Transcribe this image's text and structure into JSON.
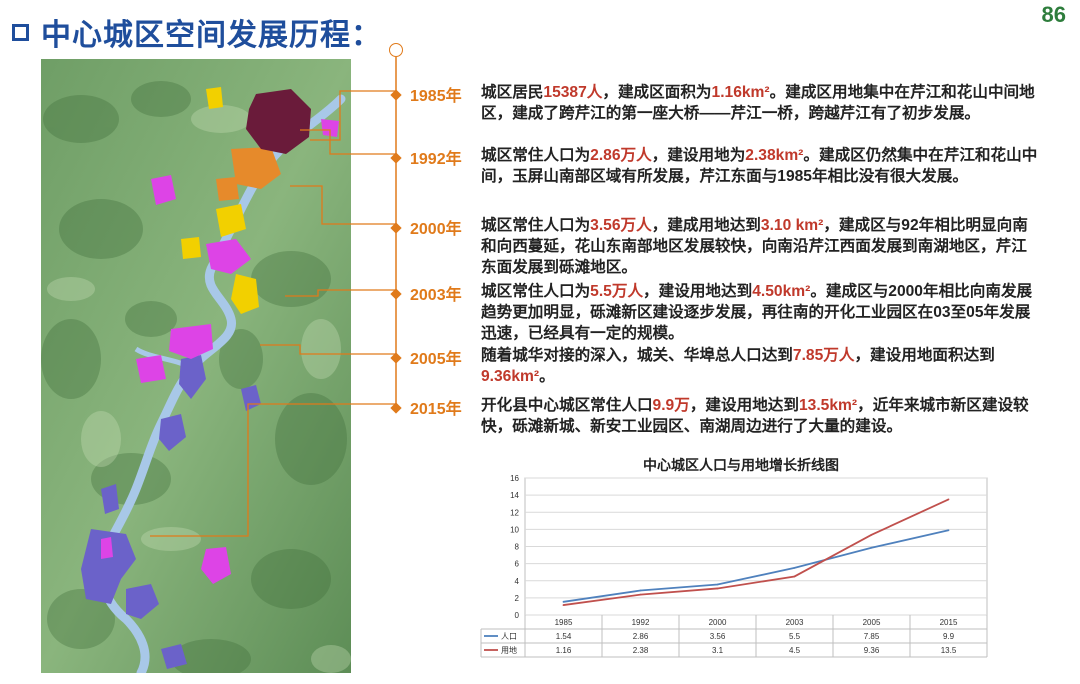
{
  "page": {
    "title": "中心城区空间发展历程：",
    "number": "86"
  },
  "timeline": [
    {
      "year": "1985年",
      "parts": [
        {
          "t": "城区居民"
        },
        {
          "t": "15387人",
          "hl": true
        },
        {
          "t": "，建成区面积为"
        },
        {
          "t": "1.16km²",
          "hl": true
        },
        {
          "t": "。建成区用地集中在芹江和花山中间地区，建成了跨芹江的第一座大桥——芹江一桥，跨越芹江有了初步发展。"
        }
      ]
    },
    {
      "year": "1992年",
      "parts": [
        {
          "t": "城区常住人口为"
        },
        {
          "t": "2.86万人",
          "hl": true
        },
        {
          "t": "，建设用地为"
        },
        {
          "t": "2.38km²",
          "hl": true
        },
        {
          "t": "。建成区仍然集中在芹江和花山中间，玉屏山南部区域有所发展，芹江东面与1985年相比没有很大发展。"
        }
      ]
    },
    {
      "year": "2000年",
      "parts": [
        {
          "t": "城区常住人口为"
        },
        {
          "t": "3.56万人",
          "hl": true
        },
        {
          "t": "，建成用地达到"
        },
        {
          "t": "3.10 km²",
          "hl": true
        },
        {
          "t": "，建成区与92年相比明显向南和向西蔓延，花山东南部地区发展较快，向南沿芹江西面发展到南湖地区，芹江东面发展到砾滩地区。"
        }
      ]
    },
    {
      "year": "2003年",
      "parts": [
        {
          "t": "城区常住人口为"
        },
        {
          "t": "5.5万人",
          "hl": true
        },
        {
          "t": "，建设用地达到"
        },
        {
          "t": "4.50km²",
          "hl": true
        },
        {
          "t": "。建成区与2000年相比向南发展趋势更加明显，砾滩新区建设逐步发展，再往南的开化工业园区在03至05年发展迅速，已经具有一定的规模。"
        }
      ]
    },
    {
      "year": "2005年",
      "parts": [
        {
          "t": "随着城华对接的深入，城关、华埠总人口达到"
        },
        {
          "t": "7.85万人",
          "hl": true
        },
        {
          "t": "，建设用地面积达到"
        },
        {
          "t": "9.36km²",
          "hl": true
        },
        {
          "t": "。"
        }
      ]
    },
    {
      "year": "2015年",
      "parts": [
        {
          "t": "开化县中心城区常住人口"
        },
        {
          "t": "9.9万",
          "hl": true
        },
        {
          "t": "，建设用地达到"
        },
        {
          "t": "13.5km²",
          "hl": true
        },
        {
          "t": "，近年来城市新区建设较快，砾滩新城、新安工业园区、南湖周边进行了大量的建设。"
        }
      ]
    }
  ],
  "colors": {
    "accent": "#e07a1a",
    "title": "#1f4e9c",
    "highlight": "#c0392b",
    "series1": "#4f81bd",
    "series2": "#c0504d"
  },
  "chart_data": {
    "type": "line",
    "title": "中心城区人口与用地增长折线图",
    "categories": [
      "1985",
      "1992",
      "2000",
      "2003",
      "2005",
      "2015"
    ],
    "series": [
      {
        "name": "人口",
        "values": [
          1.54,
          2.86,
          3.56,
          5.5,
          7.85,
          9.9
        ],
        "labels": [
          "1.54",
          "2.86",
          "3.56",
          "5.5",
          "7.85",
          "9.9"
        ],
        "color": "#4f81bd"
      },
      {
        "name": "用地",
        "values": [
          1.16,
          2.38,
          3.1,
          4.5,
          9.36,
          13.5
        ],
        "labels": [
          "1.16",
          "2.38",
          "3.1",
          "4.5",
          "9.36",
          "13.5"
        ],
        "color": "#c0504d"
      }
    ],
    "ylim": [
      0,
      16
    ],
    "yticks": [
      "0",
      "2",
      "4",
      "6",
      "8",
      "10",
      "12",
      "14",
      "16"
    ],
    "grid": true,
    "legend": "data-table"
  }
}
